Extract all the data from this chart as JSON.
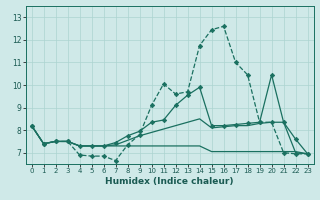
{
  "xlabel": "Humidex (Indice chaleur)",
  "background_color": "#cfe9e8",
  "grid_color": "#acd4d0",
  "line_color": "#1a7060",
  "xlim_min": -0.5,
  "xlim_max": 23.5,
  "ylim_min": 6.5,
  "ylim_max": 13.5,
  "xticks": [
    0,
    1,
    2,
    3,
    4,
    5,
    6,
    7,
    8,
    9,
    10,
    11,
    12,
    13,
    14,
    15,
    16,
    17,
    18,
    19,
    20,
    21,
    22,
    23
  ],
  "yticks": [
    7,
    8,
    9,
    10,
    11,
    12,
    13
  ],
  "line_dashed_markers": {
    "x": [
      0,
      1,
      2,
      3,
      4,
      5,
      6,
      7,
      8,
      9,
      10,
      11,
      12,
      13,
      14,
      15,
      16,
      17,
      18,
      19,
      20,
      21,
      22,
      23
    ],
    "y": [
      8.2,
      7.4,
      7.5,
      7.5,
      6.9,
      6.85,
      6.85,
      6.65,
      7.35,
      7.8,
      9.1,
      10.05,
      9.6,
      9.7,
      11.75,
      12.45,
      12.6,
      11.0,
      10.45,
      8.35,
      8.35,
      7.0,
      6.95,
      6.95
    ]
  },
  "line_solid_markers": {
    "x": [
      0,
      1,
      2,
      3,
      4,
      5,
      6,
      7,
      8,
      9,
      10,
      11,
      12,
      13,
      14,
      15,
      16,
      17,
      18,
      19,
      20,
      21,
      22,
      23
    ],
    "y": [
      8.2,
      7.4,
      7.5,
      7.5,
      7.3,
      7.3,
      7.3,
      7.45,
      7.75,
      7.95,
      8.35,
      8.45,
      9.1,
      9.55,
      9.9,
      8.2,
      8.2,
      8.25,
      8.3,
      8.35,
      10.45,
      8.35,
      7.6,
      6.95
    ]
  },
  "line_solid_upper": {
    "x": [
      0,
      1,
      2,
      3,
      4,
      5,
      6,
      7,
      8,
      9,
      10,
      11,
      12,
      13,
      14,
      15,
      16,
      17,
      18,
      19,
      20,
      21,
      22,
      23
    ],
    "y": [
      8.2,
      7.4,
      7.5,
      7.5,
      7.3,
      7.3,
      7.3,
      7.35,
      7.55,
      7.75,
      7.9,
      8.05,
      8.2,
      8.35,
      8.5,
      8.1,
      8.15,
      8.2,
      8.2,
      8.3,
      8.35,
      8.35,
      7.0,
      6.95
    ]
  },
  "line_flat": {
    "x": [
      0,
      1,
      2,
      3,
      4,
      5,
      6,
      7,
      8,
      9,
      10,
      11,
      12,
      13,
      14,
      15,
      16,
      17,
      18,
      19,
      20,
      21,
      22,
      23
    ],
    "y": [
      8.2,
      7.4,
      7.5,
      7.5,
      7.3,
      7.3,
      7.3,
      7.3,
      7.3,
      7.3,
      7.3,
      7.3,
      7.3,
      7.3,
      7.3,
      7.05,
      7.05,
      7.05,
      7.05,
      7.05,
      7.05,
      7.05,
      7.05,
      6.95
    ]
  }
}
